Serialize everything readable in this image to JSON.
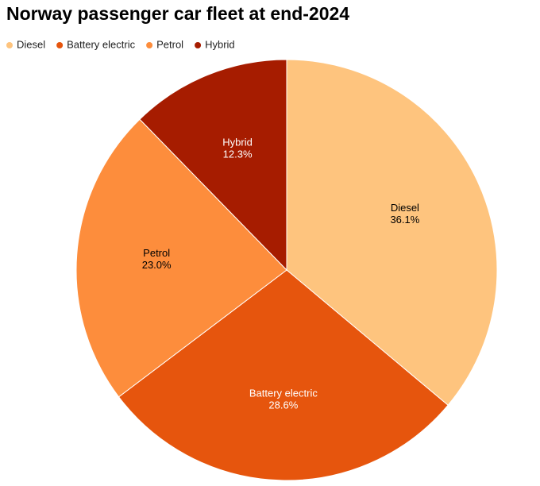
{
  "chart_data": {
    "type": "pie",
    "title": "Norway passenger car fleet at end-2024",
    "categories": [
      "Diesel",
      "Battery electric",
      "Petrol",
      "Hybrid"
    ],
    "values": [
      36.1,
      28.6,
      23.0,
      12.3
    ],
    "value_labels": [
      "36.1%",
      "28.6%",
      "23.0%",
      "12.3%"
    ],
    "colors": [
      "#fec47e",
      "#e6550d",
      "#fd8d3c",
      "#a61c00"
    ],
    "legend": "top-left"
  }
}
